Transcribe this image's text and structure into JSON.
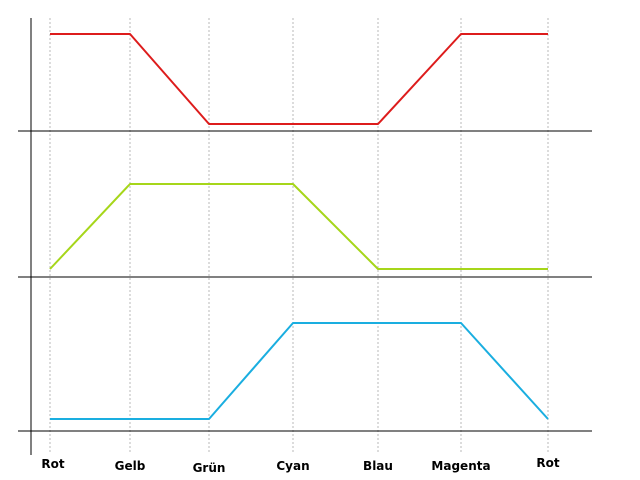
{
  "chart_data": {
    "type": "line",
    "categories": [
      "Rot",
      "Gelb",
      "Grün",
      "Cyan",
      "Blau",
      "Magenta",
      "Rot"
    ],
    "ylim": [
      0,
      1
    ],
    "grid": "vertical dotted lines at each category",
    "legend": "none",
    "panels": [
      {
        "color": "#dd1c1c",
        "values": [
          1,
          1,
          0,
          0,
          0,
          1,
          1
        ]
      },
      {
        "color": "#a6d61a",
        "values": [
          0,
          1,
          1,
          1,
          0,
          0,
          0
        ]
      },
      {
        "color": "#1aaee0",
        "values": [
          0,
          0,
          0,
          1,
          1,
          1,
          0
        ]
      }
    ]
  }
}
